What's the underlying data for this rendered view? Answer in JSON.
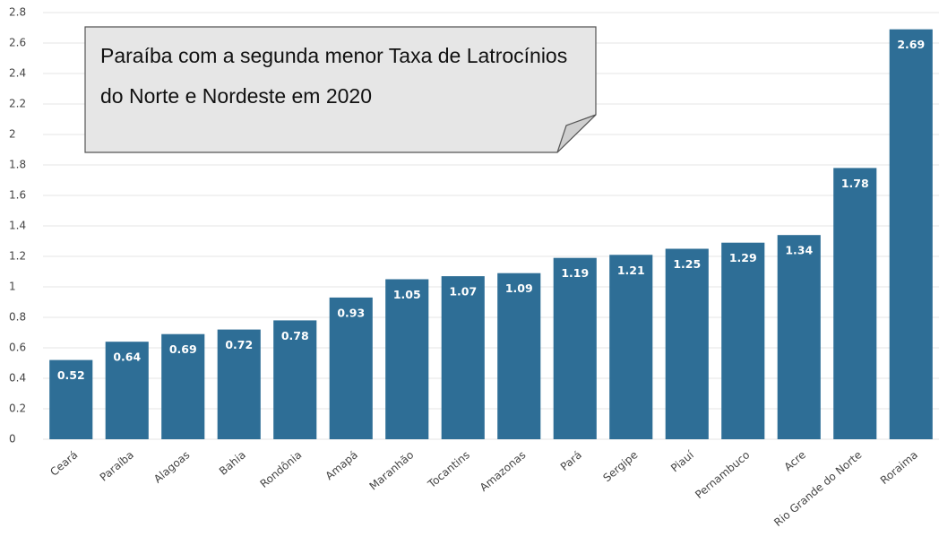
{
  "chart_data": {
    "type": "bar",
    "annotation": "Paraíba com a segunda menor Taxa de Latrocínios do Norte e Nordeste em 2020",
    "categories": [
      "Ceará",
      "Paraíba",
      "Alagoas",
      "Bahia",
      "Rondônia",
      "Amapá",
      "Maranhão",
      "Tocantins",
      "Amazonas",
      "Pará",
      "Sergipe",
      "Piauí",
      "Pernambuco",
      "Acre",
      "Rio Grande do Norte",
      "Roraima"
    ],
    "values": [
      0.52,
      0.64,
      0.69,
      0.72,
      0.78,
      0.93,
      1.05,
      1.07,
      1.09,
      1.19,
      1.21,
      1.25,
      1.29,
      1.34,
      1.78,
      2.69
    ],
    "color": "#2e6e96",
    "ylim": [
      0,
      2.8
    ],
    "yticks": [
      0,
      0.2,
      0.4,
      0.6,
      0.8,
      1,
      1.2,
      1.4,
      1.6,
      1.8,
      2,
      2.2,
      2.4,
      2.6,
      2.8
    ],
    "grid": true
  }
}
